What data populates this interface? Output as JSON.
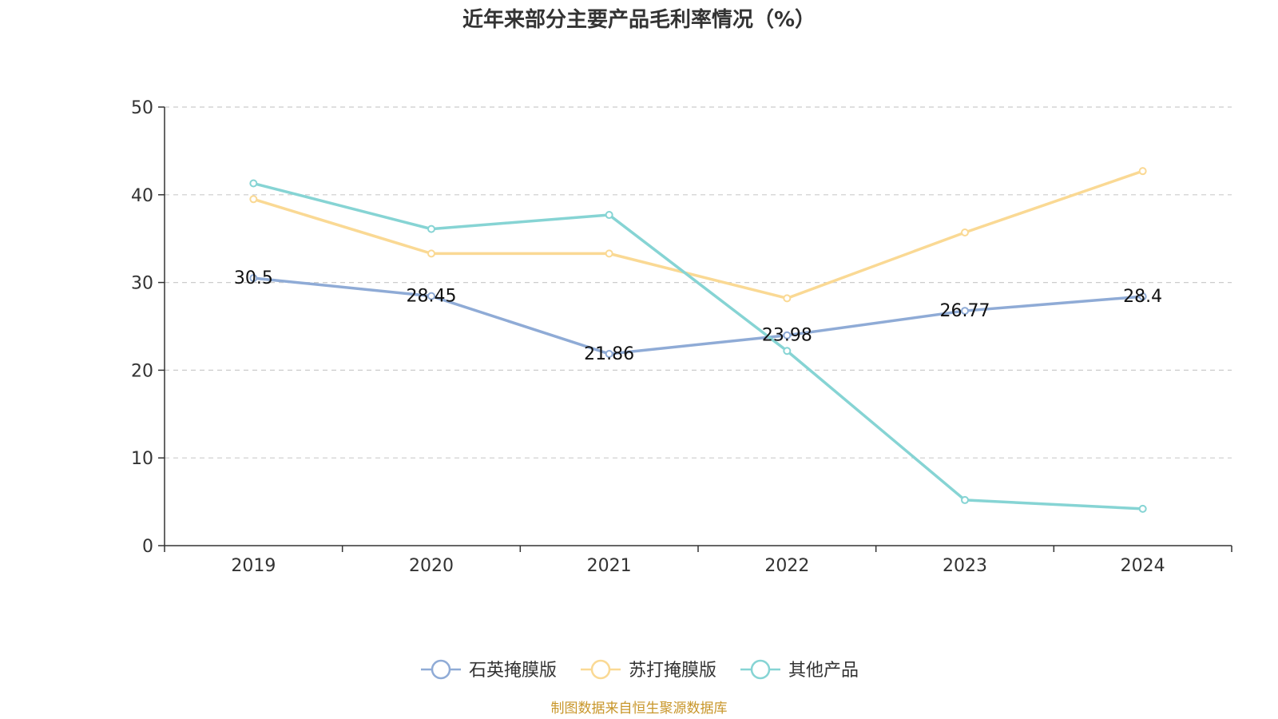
{
  "chart_data": {
    "type": "line",
    "title": "近年来部分主要产品毛利率情况（%）",
    "categories": [
      "2019",
      "2020",
      "2021",
      "2022",
      "2023",
      "2024"
    ],
    "ylim": [
      0,
      50
    ],
    "yticks": [
      0,
      10,
      20,
      30,
      40,
      50
    ],
    "grid": true,
    "legend_position": "bottom-center",
    "series": [
      {
        "name": "石英掩膜版",
        "color": "#8fabd6",
        "values": [
          30.5,
          28.45,
          21.86,
          23.98,
          26.77,
          28.4
        ],
        "show_labels": true
      },
      {
        "name": "苏打掩膜版",
        "color": "#fad994",
        "values": [
          39.5,
          33.3,
          33.3,
          28.2,
          35.7,
          42.7
        ],
        "show_labels": false
      },
      {
        "name": "其他产品",
        "color": "#86d4d4",
        "values": [
          41.3,
          36.1,
          37.7,
          22.2,
          5.2,
          4.2
        ],
        "show_labels": false
      }
    ]
  },
  "source": "制图数据来自恒生聚源数据库"
}
